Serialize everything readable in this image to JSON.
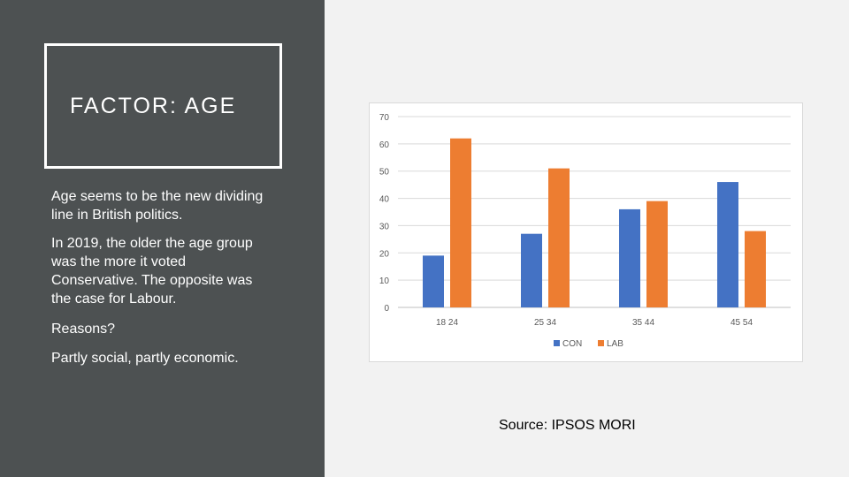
{
  "slide": {
    "title": "FACTOR: AGE",
    "paragraphs": [
      "Age seems to be the new dividing line in British politics.",
      "In 2019, the older the age group was the more it voted Conservative. The opposite was the case for Labour.",
      "Reasons?",
      "Partly social, partly economic."
    ],
    "source": "Source: IPSOS MORI"
  },
  "colors": {
    "panel": "#4d5152",
    "con": "#4472c4",
    "lab": "#ed7d31"
  },
  "chart_data": {
    "type": "bar",
    "categories": [
      "18 24",
      "25 34",
      "35 44",
      "45 54"
    ],
    "series": [
      {
        "name": "CON",
        "values": [
          19,
          27,
          36,
          46
        ],
        "color": "#4472c4"
      },
      {
        "name": "LAB",
        "values": [
          62,
          51,
          39,
          28
        ],
        "color": "#ed7d31"
      }
    ],
    "yticks": [
      0,
      10,
      20,
      30,
      40,
      50,
      60,
      70
    ],
    "ylim": [
      0,
      70
    ],
    "grid": true,
    "legend": "bottom-center",
    "title": "",
    "xlabel": "",
    "ylabel": ""
  }
}
